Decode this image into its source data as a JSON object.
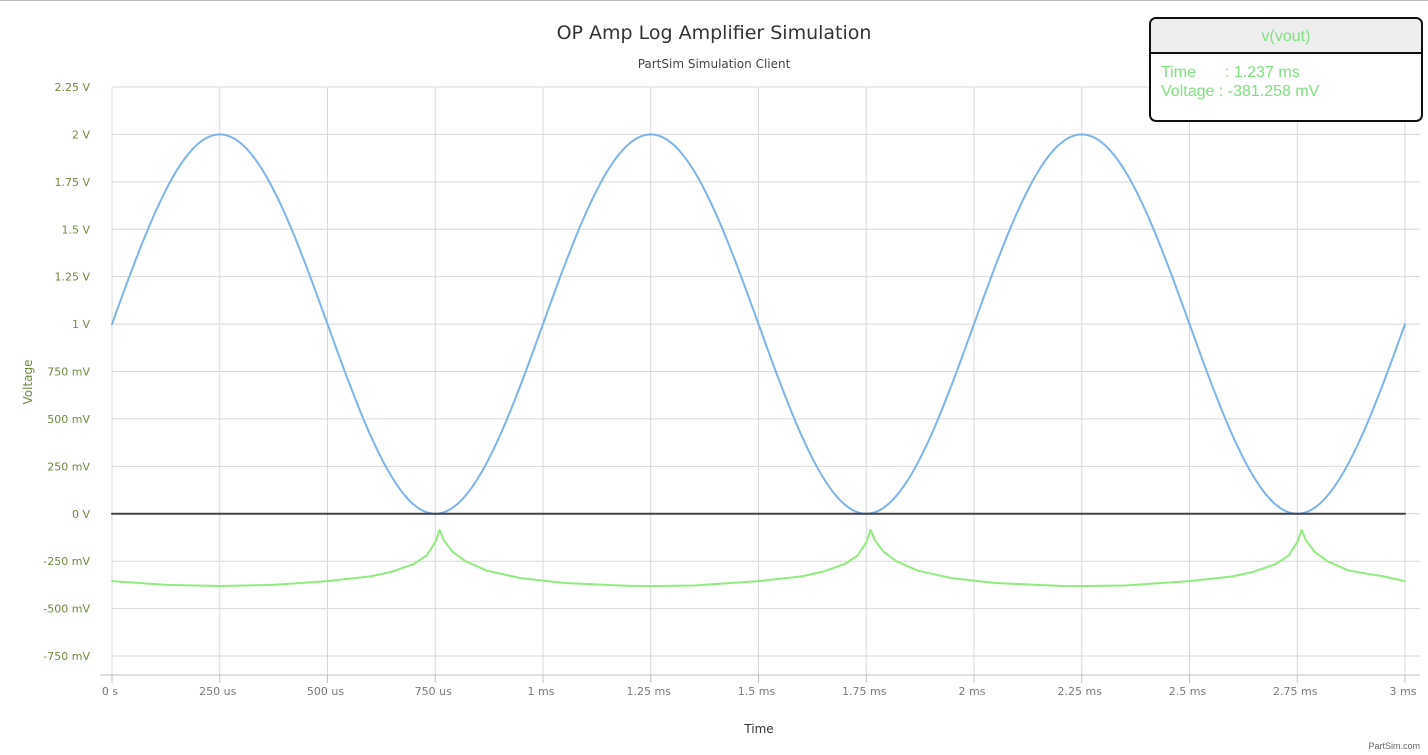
{
  "chart_data": {
    "type": "line",
    "title": "OP Amp Log Amplifier Simulation",
    "subtitle": "PartSim Simulation Client",
    "xlabel": "Time",
    "ylabel": "Voltage",
    "xlim_ms": [
      0,
      3
    ],
    "ylim_V": [
      -0.85,
      2.25
    ],
    "grid": true,
    "y_ticks": [
      {
        "value": 2.25,
        "label": "2.25 V"
      },
      {
        "value": 2.0,
        "label": "2 V"
      },
      {
        "value": 1.75,
        "label": "1.75 V"
      },
      {
        "value": 1.5,
        "label": "1.5 V"
      },
      {
        "value": 1.25,
        "label": "1.25 V"
      },
      {
        "value": 1.0,
        "label": "1 V"
      },
      {
        "value": 0.75,
        "label": "750 mV"
      },
      {
        "value": 0.5,
        "label": "500 mV"
      },
      {
        "value": 0.25,
        "label": "250 mV"
      },
      {
        "value": 0.0,
        "label": "0 V"
      },
      {
        "value": -0.25,
        "label": "-250 mV"
      },
      {
        "value": -0.5,
        "label": "-500 mV"
      },
      {
        "value": -0.75,
        "label": "-750 mV"
      }
    ],
    "x_ticks": [
      {
        "value": 0,
        "label": "0 s"
      },
      {
        "value": 0.25,
        "label": "250 us"
      },
      {
        "value": 0.5,
        "label": "500 us"
      },
      {
        "value": 0.75,
        "label": "750 us"
      },
      {
        "value": 1.0,
        "label": "1 ms"
      },
      {
        "value": 1.25,
        "label": "1.25 ms"
      },
      {
        "value": 1.5,
        "label": "1.5 ms"
      },
      {
        "value": 1.75,
        "label": "1.75 ms"
      },
      {
        "value": 2.0,
        "label": "2 ms"
      },
      {
        "value": 2.25,
        "label": "2.25 ms"
      },
      {
        "value": 2.5,
        "label": "2.5 ms"
      },
      {
        "value": 2.75,
        "label": "2.75 ms"
      },
      {
        "value": 3.0,
        "label": "3 ms"
      }
    ],
    "series": [
      {
        "color": "#7cb5ec",
        "x": [
          0,
          0.0625,
          0.125,
          0.1875,
          0.25,
          0.3125,
          0.375,
          0.4375,
          0.5,
          0.5625,
          0.625,
          0.6875,
          0.75,
          0.8125,
          0.875,
          0.9375,
          1.0,
          1.0625,
          1.125,
          1.1875,
          1.25,
          1.3125,
          1.375,
          1.4375,
          1.5,
          1.5625,
          1.625,
          1.6875,
          1.75,
          1.8125,
          1.875,
          1.9375,
          2.0,
          2.0625,
          2.125,
          2.1875,
          2.25,
          2.3125,
          2.375,
          2.4375,
          2.5,
          2.5625,
          2.625,
          2.6875,
          2.75,
          2.8125,
          2.875,
          2.9375,
          3.0
        ],
        "y": [
          1.0,
          1.383,
          1.707,
          1.924,
          2.0,
          1.924,
          1.707,
          1.383,
          1.0,
          0.617,
          0.293,
          0.076,
          0.0,
          0.076,
          0.293,
          0.617,
          1.0,
          1.383,
          1.707,
          1.924,
          2.0,
          1.924,
          1.707,
          1.383,
          1.0,
          0.617,
          0.293,
          0.076,
          0.0,
          0.076,
          0.293,
          0.617,
          1.0,
          1.383,
          1.707,
          1.924,
          2.0,
          1.924,
          1.707,
          1.383,
          1.0,
          0.617,
          0.293,
          0.076,
          0.0,
          0.076,
          0.293,
          0.617,
          1.0
        ]
      },
      {
        "color": "#434348",
        "x": [
          0,
          3
        ],
        "y": [
          0,
          0
        ]
      },
      {
        "name": "v(vout)",
        "color": "#90ed7d",
        "x": [
          0,
          0.125,
          0.25,
          0.375,
          0.5,
          0.6,
          0.65,
          0.7,
          0.73,
          0.75,
          0.76,
          0.77,
          0.79,
          0.82,
          0.87,
          0.95,
          1.05,
          1.2,
          1.26,
          1.35,
          1.5,
          1.6,
          1.65,
          1.7,
          1.73,
          1.75,
          1.76,
          1.77,
          1.79,
          1.82,
          1.87,
          1.95,
          2.05,
          2.2,
          2.26,
          2.35,
          2.5,
          2.6,
          2.65,
          2.7,
          2.73,
          2.75,
          2.76,
          2.77,
          2.79,
          2.82,
          2.87,
          2.95,
          3.0
        ],
        "y": [
          -0.355,
          -0.375,
          -0.381,
          -0.375,
          -0.355,
          -0.33,
          -0.305,
          -0.265,
          -0.22,
          -0.15,
          -0.085,
          -0.14,
          -0.2,
          -0.25,
          -0.3,
          -0.34,
          -0.365,
          -0.38,
          -0.381,
          -0.378,
          -0.355,
          -0.33,
          -0.305,
          -0.265,
          -0.22,
          -0.15,
          -0.085,
          -0.14,
          -0.2,
          -0.25,
          -0.3,
          -0.34,
          -0.365,
          -0.38,
          -0.381,
          -0.378,
          -0.355,
          -0.33,
          -0.305,
          -0.265,
          -0.22,
          -0.15,
          -0.085,
          -0.14,
          -0.2,
          -0.25,
          -0.3,
          -0.33,
          -0.355
        ]
      }
    ]
  },
  "tooltip": {
    "title": "v(vout)",
    "time_label": "Time",
    "time_value": ": 1.237 ms",
    "voltage_label": "Voltage",
    "voltage_value": ": -381.258 mV"
  },
  "footer": {
    "credit": "PartSim.com"
  }
}
